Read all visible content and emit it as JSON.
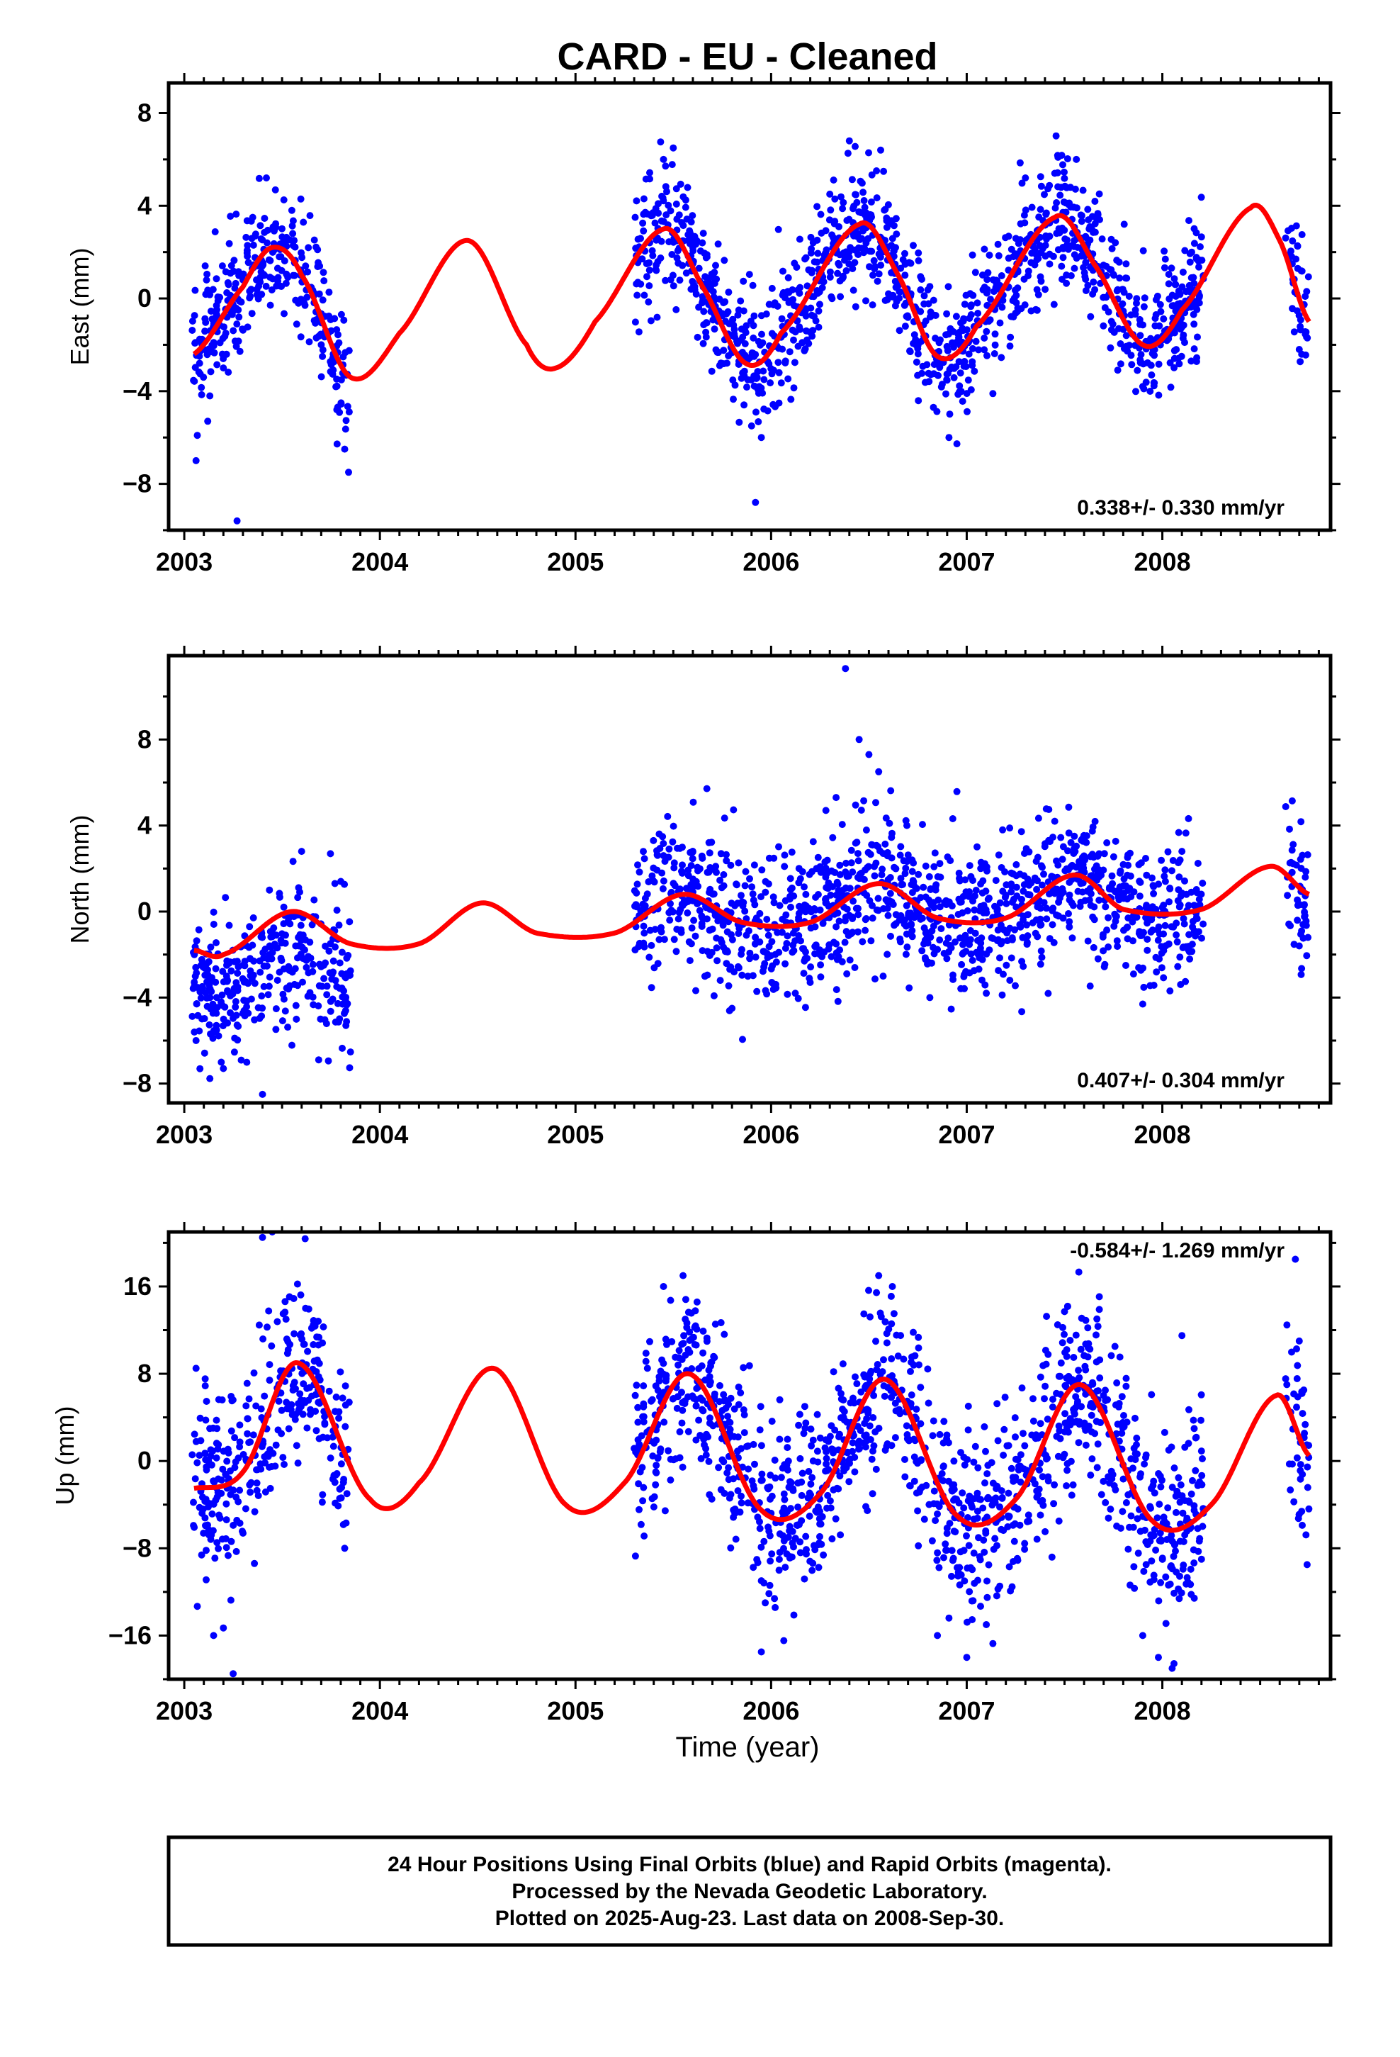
{
  "title": "CARD  - EU - Cleaned",
  "colors": {
    "points": "#0000ff",
    "model": "#ff0000",
    "frame": "#000000"
  },
  "xlabel": "Time (year)",
  "footer": [
    "24 Hour Positions Using Final Orbits (blue) and Rapid Orbits (magenta).",
    "Processed by the Nevada Geodetic Laboratory.",
    "Plotted on 2025-Aug-23. Last data on 2008-Sep-30."
  ],
  "chart_data": [
    {
      "type": "scatter",
      "component": "east",
      "ylabel": "East (mm)",
      "rate_label": "0.338+/- 0.330 mm/yr",
      "xlim": [
        2002.92,
        2008.86
      ],
      "ylim": [
        -10,
        9.3
      ],
      "x_ticks": [
        2003,
        2004,
        2005,
        2006,
        2007,
        2008
      ],
      "y_ticks": [
        -8,
        -4,
        0,
        4,
        8
      ],
      "grid": false,
      "data_segments": [
        [
          2003.04,
          2003.85
        ],
        [
          2005.3,
          2008.21
        ],
        [
          2008.63,
          2008.75
        ]
      ],
      "model": {
        "name": "trend + seasonal fit",
        "x": [
          2003.05,
          2003.3,
          2003.45,
          2003.6,
          2003.85,
          2004.1,
          2004.45,
          2004.75,
          2004.9,
          2005.1,
          2005.45,
          2005.65,
          2005.87,
          2006.05,
          2006.45,
          2006.65,
          2006.85,
          2007.05,
          2007.45,
          2007.65,
          2007.9,
          2008.1,
          2008.45,
          2008.6,
          2008.75
        ],
        "y": [
          -2.4,
          0.5,
          2.2,
          1.0,
          -3.4,
          -1.5,
          2.5,
          -2.0,
          -3.0,
          -1.0,
          3.0,
          0.5,
          -2.8,
          -1.5,
          3.2,
          1.0,
          -2.5,
          -1.2,
          3.5,
          1.5,
          -2.0,
          -0.5,
          3.9,
          2.5,
          -1.0
        ]
      },
      "points": {
        "count": 1600,
        "x": [
          2003.06,
          2003.12,
          2003.2,
          2003.3,
          2003.35,
          2003.42,
          2003.5,
          2003.55,
          2003.62,
          2003.7,
          2003.78,
          2003.82,
          2003.84,
          2005.35,
          2005.45,
          2005.6,
          2005.9,
          2005.95,
          2006.3,
          2006.4,
          2006.6,
          2006.83,
          2007.3,
          2007.45,
          2007.55,
          2007.9,
          2008.15,
          2008.7,
          2003.27,
          2005.92
        ],
        "y": [
          -7.0,
          -5.3,
          -3.0,
          0.8,
          3.5,
          5.2,
          2.3,
          3.8,
          1.4,
          -2.0,
          -4.8,
          -6.5,
          -7.5,
          4.3,
          6.0,
          2.2,
          -5.5,
          -6.0,
          4.5,
          6.8,
          0.2,
          -4.7,
          5.2,
          5.4,
          2.5,
          -3.8,
          2.0,
          -2.2,
          -9.6,
          -8.8
        ]
      }
    },
    {
      "type": "scatter",
      "component": "north",
      "ylabel": "North (mm)",
      "rate_label": "0.407+/- 0.304 mm/yr",
      "xlim": [
        2002.92,
        2008.86
      ],
      "ylim": [
        -8.9,
        11.9
      ],
      "x_ticks": [
        2003,
        2004,
        2005,
        2006,
        2007,
        2008
      ],
      "y_ticks": [
        -8,
        -4,
        0,
        4,
        8
      ],
      "grid": false,
      "data_segments": [
        [
          2003.04,
          2003.85
        ],
        [
          2005.3,
          2008.21
        ],
        [
          2008.63,
          2008.75
        ]
      ],
      "model": {
        "name": "trend + seasonal fit",
        "x": [
          2003.05,
          2003.2,
          2003.55,
          2003.85,
          2004.2,
          2004.52,
          2004.8,
          2005.2,
          2005.55,
          2005.85,
          2006.2,
          2006.55,
          2006.85,
          2007.2,
          2007.55,
          2007.8,
          2008.2,
          2008.55,
          2008.75
        ],
        "y": [
          -1.8,
          -2.0,
          0.0,
          -1.5,
          -1.5,
          0.4,
          -1.0,
          -1.0,
          0.8,
          -0.5,
          -0.5,
          1.3,
          -0.3,
          -0.3,
          1.7,
          0.1,
          0.1,
          2.1,
          0.8
        ]
      },
      "points": {
        "count": 1600,
        "x": [
          2003.06,
          2003.2,
          2003.4,
          2003.6,
          2003.8,
          2005.45,
          2005.6,
          2005.8,
          2006.1,
          2006.28,
          2006.38,
          2006.45,
          2006.5,
          2006.55,
          2007.1,
          2007.45,
          2007.55,
          2007.9,
          2008.1,
          2008.7
        ],
        "y": [
          -6.0,
          -7.3,
          -8.5,
          2.8,
          1.4,
          2.6,
          0.5,
          -4.5,
          0.2,
          4.7,
          11.3,
          8.0,
          7.3,
          6.5,
          -3.8,
          4.2,
          3.5,
          -4.3,
          2.8,
          -1.6
        ]
      }
    },
    {
      "type": "scatter",
      "component": "up",
      "ylabel": "Up (mm)",
      "rate_label": "-0.584+/- 1.269 mm/yr",
      "xlim": [
        2002.92,
        2008.86
      ],
      "ylim": [
        -20,
        21
      ],
      "x_ticks": [
        2003,
        2004,
        2005,
        2006,
        2007,
        2008
      ],
      "y_ticks": [
        -16,
        -8,
        0,
        8,
        16
      ],
      "grid": false,
      "data_segments": [
        [
          2003.04,
          2003.85
        ],
        [
          2005.3,
          2008.21
        ],
        [
          2008.63,
          2008.75
        ]
      ],
      "model": {
        "name": "trend + seasonal fit",
        "x": [
          2003.05,
          2003.3,
          2003.58,
          2003.95,
          2004.2,
          2004.58,
          2004.95,
          2005.25,
          2005.58,
          2005.95,
          2006.25,
          2006.58,
          2006.95,
          2007.25,
          2007.58,
          2007.95,
          2008.25,
          2008.58,
          2008.75
        ],
        "y": [
          -2.5,
          -1.0,
          9.0,
          -3.5,
          -2.0,
          8.5,
          -4.0,
          -2.0,
          8.0,
          -4.5,
          -3.0,
          7.5,
          -5.0,
          -3.5,
          7.0,
          -5.5,
          -4.0,
          6.0,
          0.5
        ]
      },
      "points": {
        "count": 1600,
        "x": [
          2003.06,
          2003.15,
          2003.2,
          2003.25,
          2003.4,
          2003.45,
          2003.52,
          2003.62,
          2003.82,
          2005.45,
          2005.55,
          2005.95,
          2005.97,
          2006.55,
          2006.62,
          2006.85,
          2007.0,
          2007.1,
          2007.9,
          2007.98,
          2008.05,
          2008.1,
          2008.2,
          2008.68,
          2008.7,
          2008.74
        ],
        "y": [
          8.5,
          -16.0,
          -15.3,
          -19.5,
          20.5,
          21.0,
          13.0,
          14.0,
          -8.0,
          16.0,
          17.0,
          -17.5,
          -13.0,
          17.0,
          16.0,
          -16.0,
          -18.0,
          -15.0,
          -16.0,
          -18.0,
          -19.0,
          11.5,
          -9.0,
          18.5,
          11.0,
          -9.5
        ]
      }
    }
  ]
}
